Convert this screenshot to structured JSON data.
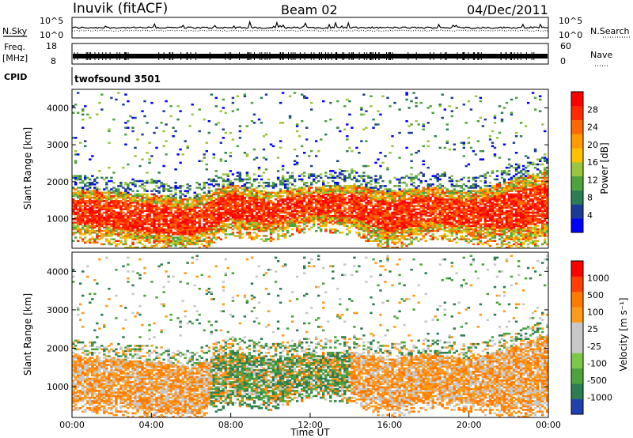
{
  "header": {
    "title": "Inuvik (fitACF)",
    "beam": "Beam 02",
    "date": "04/Dec/2011"
  },
  "top_panels": {
    "nsky_label": "N.Sky",
    "nsearch_label": "N.Search",
    "freq_label": "Freq.",
    "freq_unit": "[MHz]",
    "nave_label": "Nave",
    "cpid_label": "CPID",
    "cpid_value": "twofsound 3501",
    "noise_ticks": [
      "10^5",
      "10^0"
    ],
    "noise_ticks_right": [
      "10^5",
      "10^0"
    ],
    "freq_ticks": [
      "18",
      "8"
    ],
    "nave_ticks": [
      "60",
      "0"
    ]
  },
  "chart_data": [
    {
      "type": "heatmap",
      "name": "power",
      "ylabel": "Slant Range [km]",
      "xlabel": "",
      "ylim": [
        200,
        4500
      ],
      "xlim": [
        0,
        24
      ],
      "yticks": [
        "4000",
        "3000",
        "2000",
        "1000"
      ],
      "ytick_values": [
        4000,
        3000,
        2000,
        1000
      ],
      "colorbar": {
        "label": "Power [dB]",
        "ticks": [
          "28",
          "24",
          "20",
          "16",
          "12",
          "8",
          "4"
        ],
        "colors": [
          "#0000ff",
          "#1d3b94",
          "#2e7d52",
          "#4fa33f",
          "#9ac63d",
          "#ffc000",
          "#ff9a00",
          "#ff6a00",
          "#ff2a00",
          "#ff0000"
        ]
      },
      "band_profile_km": {
        "hours": [
          0,
          2,
          4,
          6,
          8,
          10,
          12,
          14,
          16,
          18,
          20,
          22,
          24
        ],
        "lower": [
          600,
          500,
          350,
          250,
          750,
          600,
          900,
          800,
          350,
          650,
          550,
          400,
          500
        ],
        "upper": [
          1800,
          1700,
          1650,
          1500,
          1900,
          1700,
          1850,
          1900,
          1700,
          1850,
          1700,
          2000,
          2300
        ]
      }
    },
    {
      "type": "heatmap",
      "name": "velocity",
      "ylabel": "Slant Range [km]",
      "xlabel": "Time UT",
      "ylim": [
        200,
        4500
      ],
      "xlim": [
        0,
        24
      ],
      "yticks": [
        "4000",
        "3000",
        "2000",
        "1000"
      ],
      "ytick_values": [
        4000,
        3000,
        2000,
        1000
      ],
      "xticks": [
        "00:00",
        "04:00",
        "08:00",
        "12:00",
        "16:00",
        "20:00",
        "00:00"
      ],
      "xtick_values": [
        0,
        4,
        8,
        12,
        16,
        20,
        24
      ],
      "colorbar": {
        "label": "Velocity [m s⁻¹]",
        "ticks": [
          "1000",
          "500",
          "100",
          "25",
          "-25",
          "-100",
          "-500",
          "-1000"
        ],
        "colors": [
          "#2040b0",
          "#2e7d52",
          "#4fa33f",
          "#7cc84a",
          "#c8c8c8",
          "#c8c8c8",
          "#ff9a1a",
          "#ff7a00",
          "#ff4000",
          "#ff0000"
        ]
      }
    }
  ]
}
